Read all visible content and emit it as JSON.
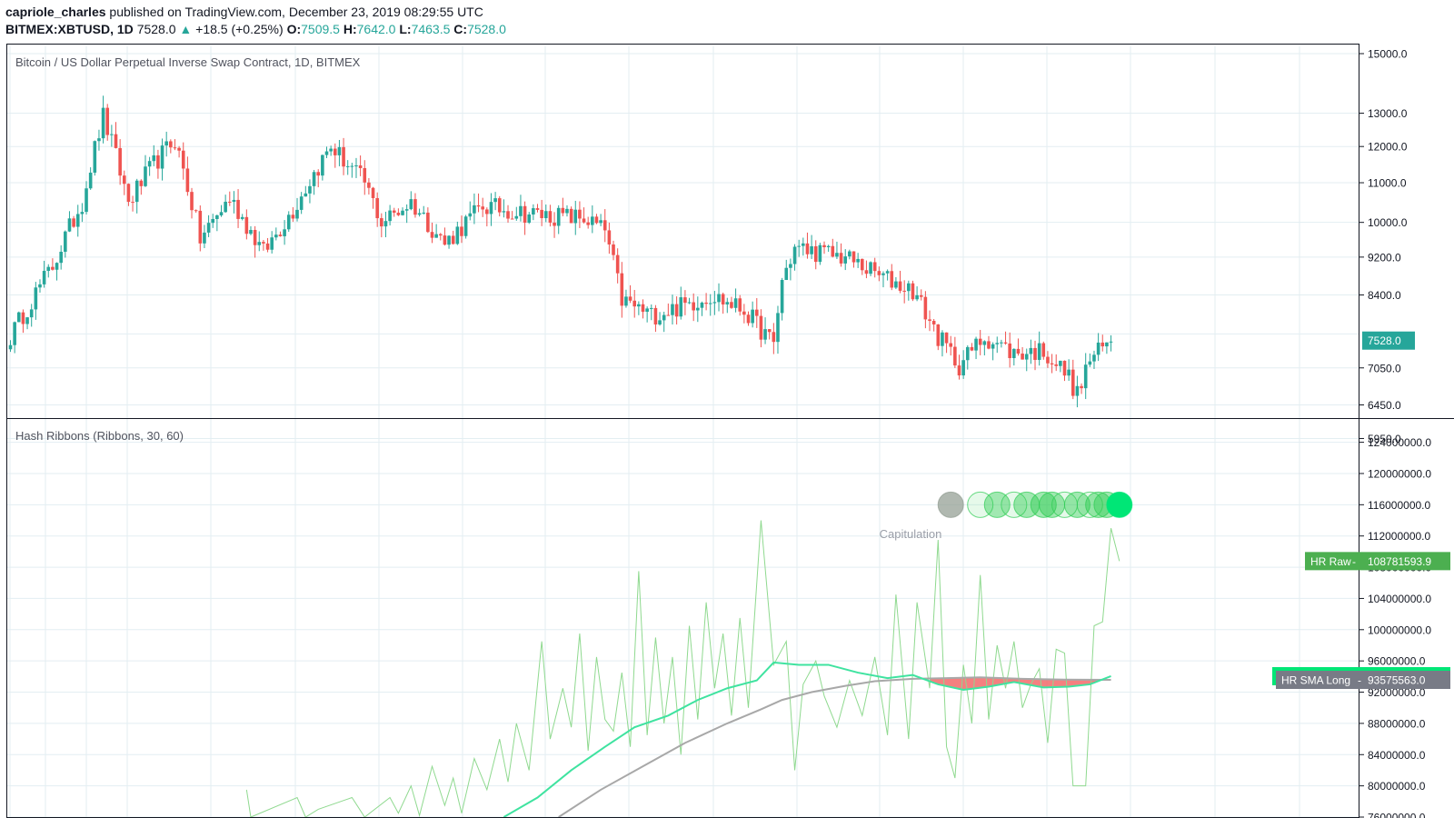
{
  "header": {
    "author": "capriole_charles",
    "published_text": " published on TradingView.com, December 23, 2019 08:29:55 UTC",
    "symbol": "BITMEX:XBTUSD, 1D",
    "last": "7528.0",
    "change": "+18.5 (+0.25%)",
    "open_label": "O:",
    "open": "7509.5",
    "high_label": "H:",
    "high": "7642.0",
    "low_label": "L:",
    "low": "7463.5",
    "close_label": "C:",
    "close": "7528.0"
  },
  "colors": {
    "up": "#26a69a",
    "down": "#ef5350",
    "grid": "#e3eef2",
    "hr_raw": "#8fd98f",
    "sma_short": "#3fe3a0",
    "sma_long": "#a8a8a8",
    "ribbon_red": "#f26a6a",
    "circle_green": "#2ecc52",
    "circle_gray": "#8f9a8f",
    "last_tag": "#26a69a",
    "hr_raw_tag": "#4caf50",
    "sma_short_tag": "#00e676",
    "sma_long_tag": "#787b86"
  },
  "chart_data": [
    {
      "type": "candlestick",
      "title": "Bitcoin / US Dollar Perpetual Inverse Swap Contract, 1D, BITMEX",
      "scale": "log",
      "y_ticks": [
        "15000.0",
        "13000.0",
        "12000.0",
        "11000.0",
        "10000.0",
        "9200.0",
        "8400.0",
        "7050.0",
        "6450.0",
        "5950.0"
      ],
      "last_price_label": "7528.0",
      "anchors": [
        {
          "day": 0,
          "price": 7600
        },
        {
          "day": 10,
          "price": 9000
        },
        {
          "day": 17,
          "price": 10500
        },
        {
          "day": 22,
          "price": 12900
        },
        {
          "day": 28,
          "price": 10500
        },
        {
          "day": 34,
          "price": 11500
        },
        {
          "day": 39,
          "price": 12200
        },
        {
          "day": 45,
          "price": 9600
        },
        {
          "day": 52,
          "price": 10600
        },
        {
          "day": 60,
          "price": 9300
        },
        {
          "day": 67,
          "price": 10300
        },
        {
          "day": 76,
          "price": 12000
        },
        {
          "day": 84,
          "price": 11000
        },
        {
          "day": 88,
          "price": 10000
        },
        {
          "day": 95,
          "price": 10500
        },
        {
          "day": 103,
          "price": 9500
        },
        {
          "day": 112,
          "price": 10400
        },
        {
          "day": 124,
          "price": 10200
        },
        {
          "day": 136,
          "price": 10100
        },
        {
          "day": 141,
          "price": 9800
        },
        {
          "day": 145,
          "price": 8300
        },
        {
          "day": 152,
          "price": 8000
        },
        {
          "day": 160,
          "price": 8200
        },
        {
          "day": 166,
          "price": 8400
        },
        {
          "day": 174,
          "price": 8100
        },
        {
          "day": 181,
          "price": 7450
        },
        {
          "day": 183,
          "price": 8700
        },
        {
          "day": 186,
          "price": 9400
        },
        {
          "day": 198,
          "price": 9200
        },
        {
          "day": 206,
          "price": 8800
        },
        {
          "day": 214,
          "price": 8500
        },
        {
          "day": 220,
          "price": 7600
        },
        {
          "day": 225,
          "price": 7100
        },
        {
          "day": 231,
          "price": 7600
        },
        {
          "day": 238,
          "price": 7300
        },
        {
          "day": 245,
          "price": 7350
        },
        {
          "day": 251,
          "price": 6900
        },
        {
          "day": 253,
          "price": 6600
        },
        {
          "day": 256,
          "price": 7200
        },
        {
          "day": 261,
          "price": 7510
        }
      ]
    },
    {
      "type": "line",
      "title": "Hash Ribbons (Ribbons, 30, 60)",
      "y_ticks": [
        "124000000.0",
        "120000000.0",
        "116000000.0",
        "112000000.0",
        "108000000.0",
        "104000000.0",
        "100000000.0",
        "96000000.0",
        "92000000.0",
        "88000000.0",
        "84000000.0",
        "80000000.0",
        "76000000.0"
      ],
      "annotation": "Capitulation",
      "series": [
        {
          "name": "HR Raw",
          "last_value": "108781593.9"
        },
        {
          "name": "HR SMA Short",
          "last_value": "94044846.4"
        },
        {
          "name": "HR SMA Long",
          "last_value": "93575563.0"
        }
      ],
      "sma_short_anchors": [
        {
          "day": 117,
          "value": 76000000
        },
        {
          "day": 125,
          "value": 78500000
        },
        {
          "day": 133,
          "value": 82000000
        },
        {
          "day": 141,
          "value": 85000000
        },
        {
          "day": 148,
          "value": 87500000
        },
        {
          "day": 156,
          "value": 89000000
        },
        {
          "day": 163,
          "value": 91000000
        },
        {
          "day": 170,
          "value": 92500000
        },
        {
          "day": 177,
          "value": 93500000
        },
        {
          "day": 181,
          "value": 95800000
        },
        {
          "day": 187,
          "value": 95500000
        },
        {
          "day": 194,
          "value": 95500000
        },
        {
          "day": 201,
          "value": 94500000
        },
        {
          "day": 208,
          "value": 93800000
        },
        {
          "day": 214,
          "value": 94200000
        },
        {
          "day": 220,
          "value": 93000000
        },
        {
          "day": 226,
          "value": 92300000
        },
        {
          "day": 232,
          "value": 92700000
        },
        {
          "day": 238,
          "value": 93300000
        },
        {
          "day": 245,
          "value": 92600000
        },
        {
          "day": 251,
          "value": 92700000
        },
        {
          "day": 256,
          "value": 93000000
        },
        {
          "day": 261,
          "value": 94044846
        }
      ],
      "sma_long_anchors": [
        {
          "day": 130,
          "value": 76000000
        },
        {
          "day": 140,
          "value": 79500000
        },
        {
          "day": 150,
          "value": 82500000
        },
        {
          "day": 160,
          "value": 85500000
        },
        {
          "day": 170,
          "value": 88000000
        },
        {
          "day": 178,
          "value": 89800000
        },
        {
          "day": 183,
          "value": 91000000
        },
        {
          "day": 190,
          "value": 92000000
        },
        {
          "day": 198,
          "value": 92800000
        },
        {
          "day": 205,
          "value": 93400000
        },
        {
          "day": 214,
          "value": 93700000
        },
        {
          "day": 222,
          "value": 93800000
        },
        {
          "day": 230,
          "value": 93900000
        },
        {
          "day": 240,
          "value": 93700000
        },
        {
          "day": 250,
          "value": 93600000
        },
        {
          "day": 261,
          "value": 93575563
        }
      ],
      "hr_raw_anchors": [
        {
          "day": 56,
          "value": 79500000
        },
        {
          "day": 57,
          "value": 76000000
        },
        {
          "day": 68,
          "value": 78500000
        },
        {
          "day": 70,
          "value": 76000000
        },
        {
          "day": 73,
          "value": 77000000
        },
        {
          "day": 81,
          "value": 78500000
        },
        {
          "day": 84,
          "value": 76000000
        },
        {
          "day": 90,
          "value": 78500000
        },
        {
          "day": 92,
          "value": 76500000
        },
        {
          "day": 95,
          "value": 80000000
        },
        {
          "day": 97,
          "value": 76200000
        },
        {
          "day": 100,
          "value": 82500000
        },
        {
          "day": 103,
          "value": 77500000
        },
        {
          "day": 105,
          "value": 81000000
        },
        {
          "day": 107,
          "value": 76500000
        },
        {
          "day": 110,
          "value": 83500000
        },
        {
          "day": 113,
          "value": 79500000
        },
        {
          "day": 116,
          "value": 86000000
        },
        {
          "day": 118,
          "value": 80500000
        },
        {
          "day": 120,
          "value": 88000000
        },
        {
          "day": 123,
          "value": 82000000
        },
        {
          "day": 126,
          "value": 98500000
        },
        {
          "day": 128,
          "value": 86000000
        },
        {
          "day": 131,
          "value": 92500000
        },
        {
          "day": 133,
          "value": 87500000
        },
        {
          "day": 135,
          "value": 99500000
        },
        {
          "day": 137,
          "value": 84500000
        },
        {
          "day": 139,
          "value": 96500000
        },
        {
          "day": 141,
          "value": 88500000
        },
        {
          "day": 143,
          "value": 87000000
        },
        {
          "day": 145,
          "value": 94500000
        },
        {
          "day": 147,
          "value": 85000000
        },
        {
          "day": 149,
          "value": 107500000
        },
        {
          "day": 151,
          "value": 86500000
        },
        {
          "day": 153,
          "value": 99000000
        },
        {
          "day": 155,
          "value": 88000000
        },
        {
          "day": 157,
          "value": 96500000
        },
        {
          "day": 159,
          "value": 84000000
        },
        {
          "day": 161,
          "value": 100500000
        },
        {
          "day": 163,
          "value": 88500000
        },
        {
          "day": 165,
          "value": 103500000
        },
        {
          "day": 167,
          "value": 92500000
        },
        {
          "day": 169,
          "value": 99500000
        },
        {
          "day": 171,
          "value": 89000000
        },
        {
          "day": 173,
          "value": 101500000
        },
        {
          "day": 175,
          "value": 90000000
        },
        {
          "day": 178,
          "value": 114000000
        },
        {
          "day": 181,
          "value": 95500000
        },
        {
          "day": 184,
          "value": 98500000
        },
        {
          "day": 186,
          "value": 82000000
        },
        {
          "day": 188,
          "value": 93000000
        },
        {
          "day": 191,
          "value": 96000000
        },
        {
          "day": 193,
          "value": 91500000
        },
        {
          "day": 196,
          "value": 87500000
        },
        {
          "day": 199,
          "value": 93500000
        },
        {
          "day": 202,
          "value": 89000000
        },
        {
          "day": 205,
          "value": 96500000
        },
        {
          "day": 208,
          "value": 86500000
        },
        {
          "day": 210,
          "value": 104500000
        },
        {
          "day": 213,
          "value": 86000000
        },
        {
          "day": 215,
          "value": 103500000
        },
        {
          "day": 218,
          "value": 92500000
        },
        {
          "day": 220,
          "value": 111500000
        },
        {
          "day": 222,
          "value": 85000000
        },
        {
          "day": 224,
          "value": 81000000
        },
        {
          "day": 226,
          "value": 95500000
        },
        {
          "day": 228,
          "value": 88000000
        },
        {
          "day": 230,
          "value": 107000000
        },
        {
          "day": 232,
          "value": 88500000
        },
        {
          "day": 234,
          "value": 98000000
        },
        {
          "day": 236,
          "value": 92500000
        },
        {
          "day": 238,
          "value": 98500000
        },
        {
          "day": 240,
          "value": 90000000
        },
        {
          "day": 242,
          "value": 93000000
        },
        {
          "day": 244,
          "value": 95000000
        },
        {
          "day": 246,
          "value": 85500000
        },
        {
          "day": 248,
          "value": 97500000
        },
        {
          "day": 250,
          "value": 97000000
        },
        {
          "day": 252,
          "value": 80000000
        },
        {
          "day": 255,
          "value": 80000000
        },
        {
          "day": 257,
          "value": 100500000
        },
        {
          "day": 259,
          "value": 101000000
        },
        {
          "day": 261,
          "value": 113000000
        },
        {
          "day": 263,
          "value": 108781593
        }
      ],
      "circles": [
        {
          "day": 223,
          "state": "gray"
        },
        {
          "day": 230,
          "state": "faint"
        },
        {
          "day": 234,
          "state": "green"
        },
        {
          "day": 238,
          "state": "faint"
        },
        {
          "day": 241,
          "state": "green"
        },
        {
          "day": 245,
          "state": "green"
        },
        {
          "day": 247,
          "state": "green"
        },
        {
          "day": 250,
          "state": "faint"
        },
        {
          "day": 253,
          "state": "green"
        },
        {
          "day": 256,
          "state": "faint"
        },
        {
          "day": 258,
          "state": "green"
        },
        {
          "day": 260,
          "state": "green"
        },
        {
          "day": 263,
          "state": "bright"
        }
      ]
    }
  ]
}
